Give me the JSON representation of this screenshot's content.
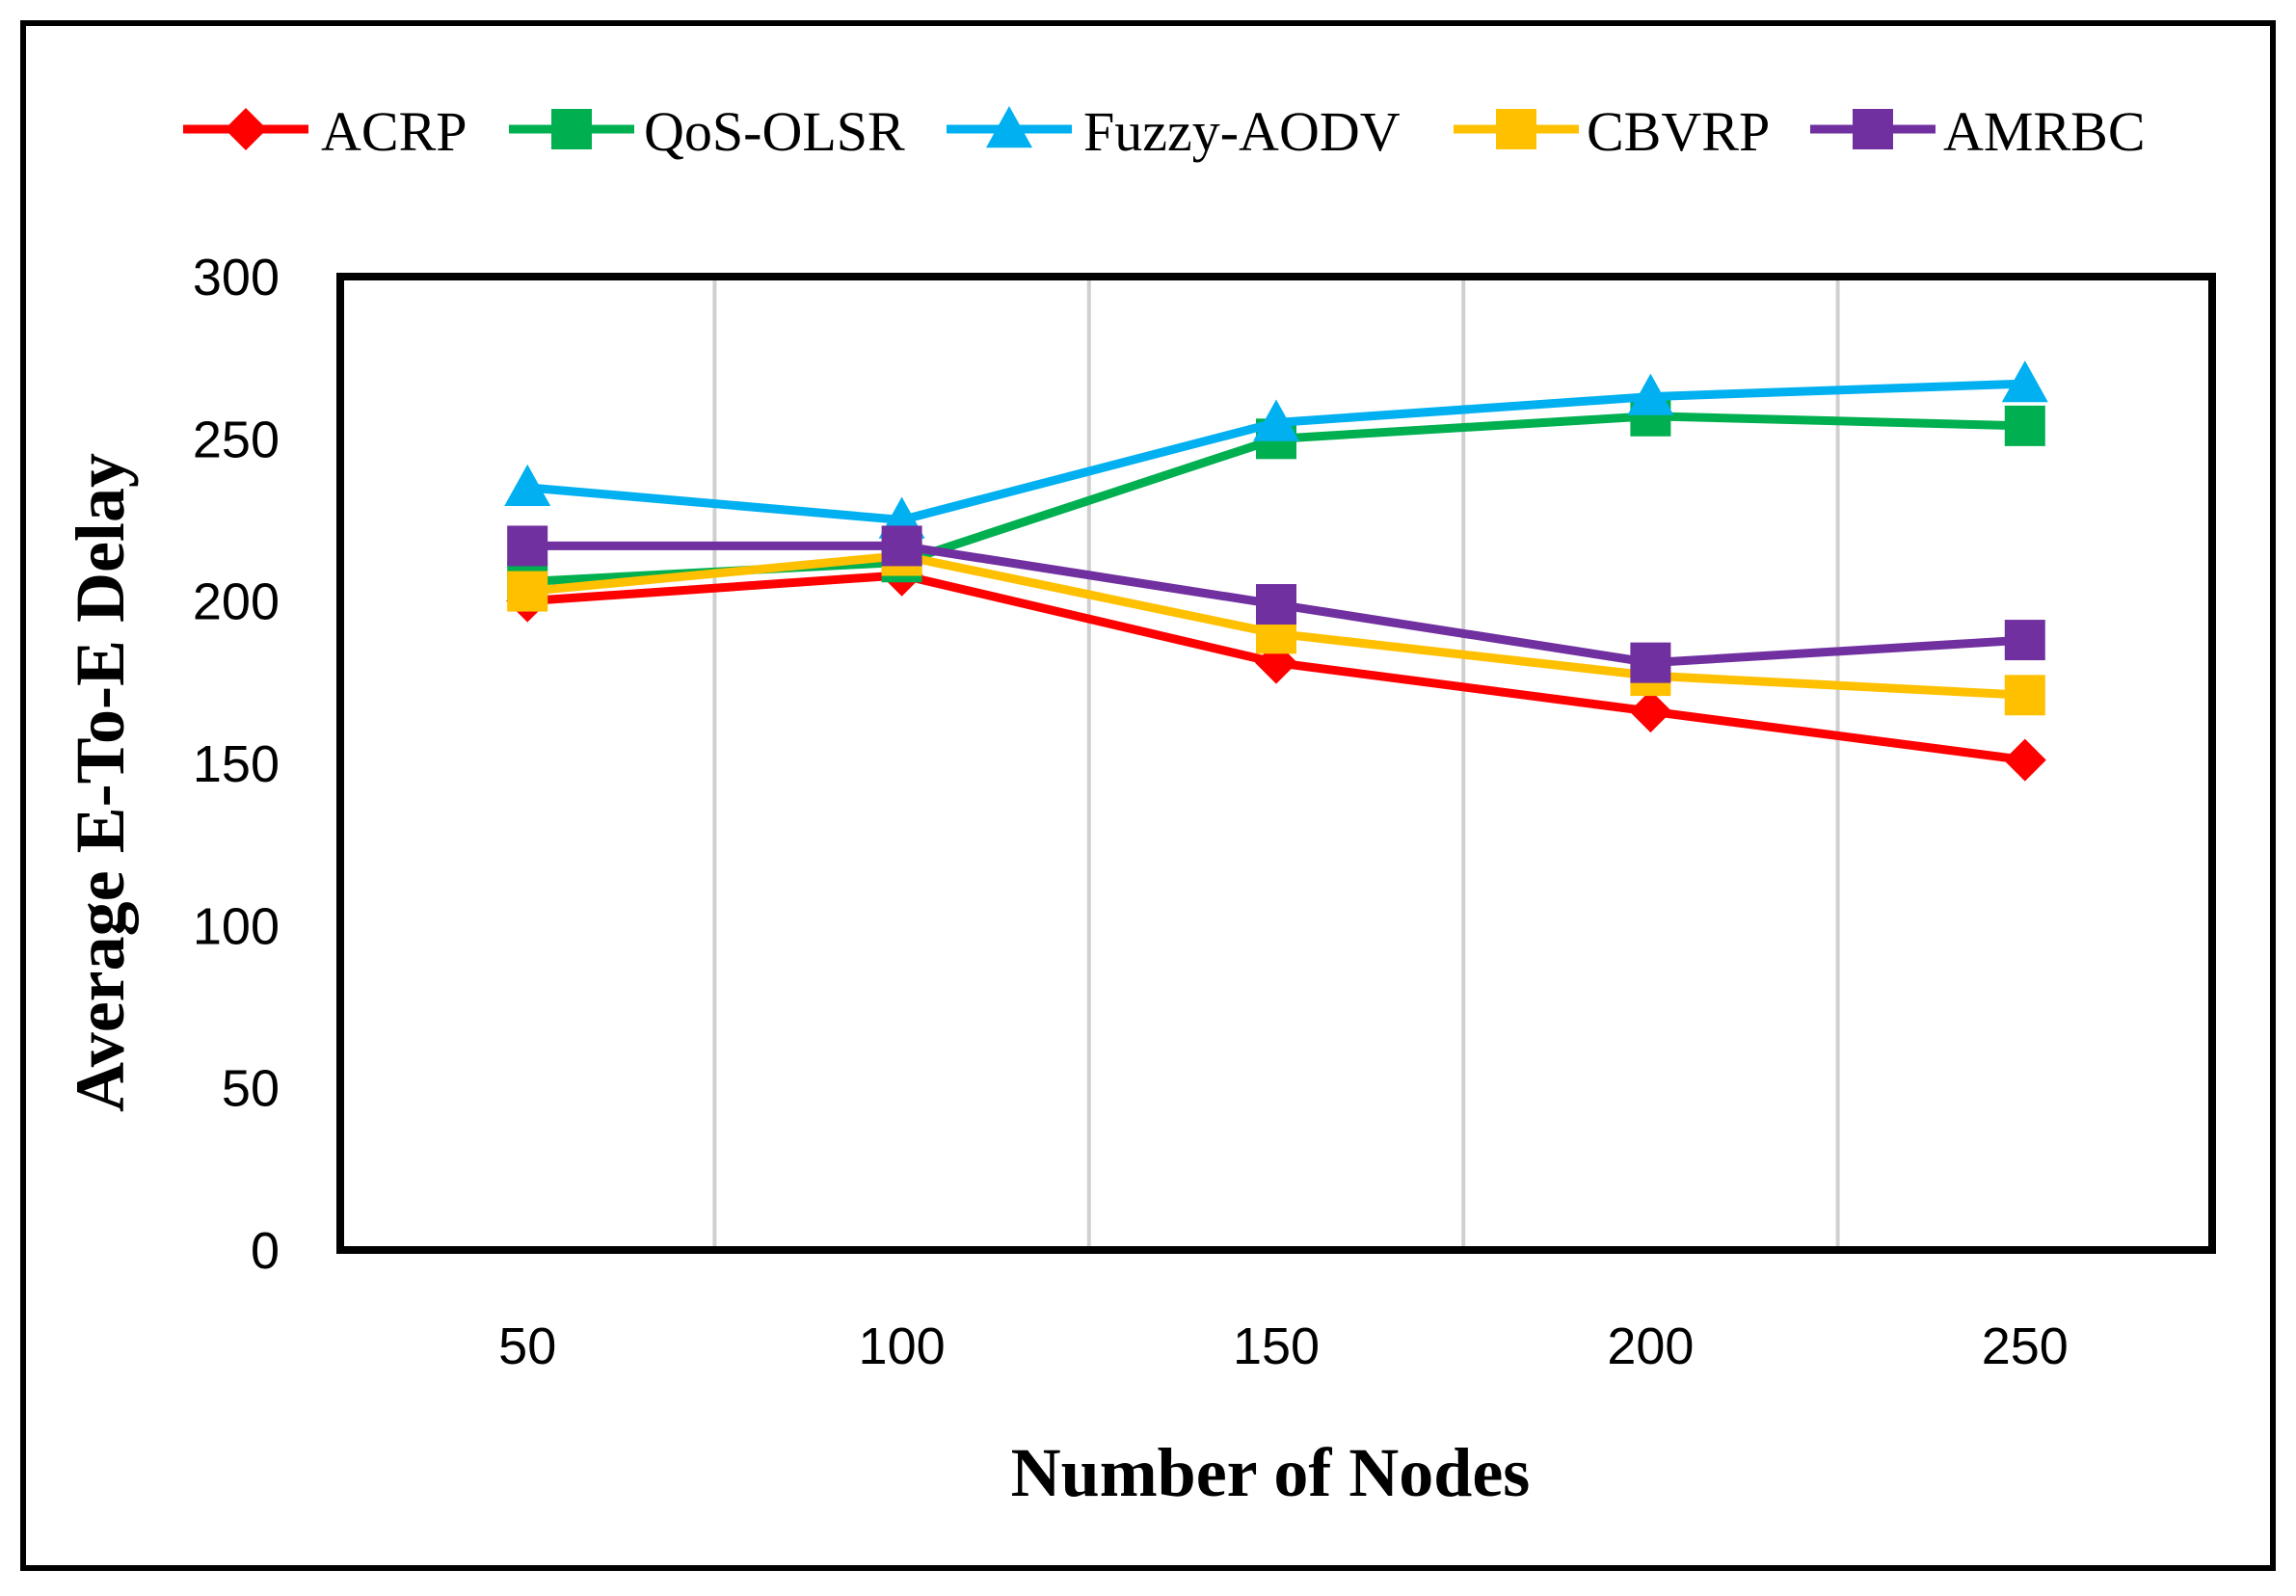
{
  "chart_data": {
    "type": "line",
    "title": "",
    "xlabel": "Number of Nodes",
    "ylabel": "Average E-To-E Delay",
    "categories": [
      "50",
      "100",
      "150",
      "200",
      "250"
    ],
    "y_ticks": [
      "0",
      "50",
      "100",
      "150",
      "200",
      "250",
      "300"
    ],
    "ylim": [
      0,
      300
    ],
    "grid": "vertical",
    "legend_position": "top",
    "series": [
      {
        "name": "ACRP",
        "color": "#ff0000",
        "marker": "diamond",
        "values": [
          200,
          208,
          181,
          166,
          151
        ]
      },
      {
        "name": "QoS-OLSR",
        "color": "#00b050",
        "marker": "square",
        "values": [
          206,
          212,
          250,
          257,
          254
        ]
      },
      {
        "name": "Fuzzy-AODV",
        "color": "#00b0f0",
        "marker": "triangle",
        "values": [
          235,
          225,
          255,
          263,
          267
        ]
      },
      {
        "name": "CBVRP",
        "color": "#ffc000",
        "marker": "square",
        "values": [
          203,
          214,
          190,
          177,
          171
        ]
      },
      {
        "name": "AMRBC",
        "color": "#7030a0",
        "marker": "square",
        "values": [
          217,
          217,
          199,
          181,
          188
        ]
      }
    ]
  }
}
